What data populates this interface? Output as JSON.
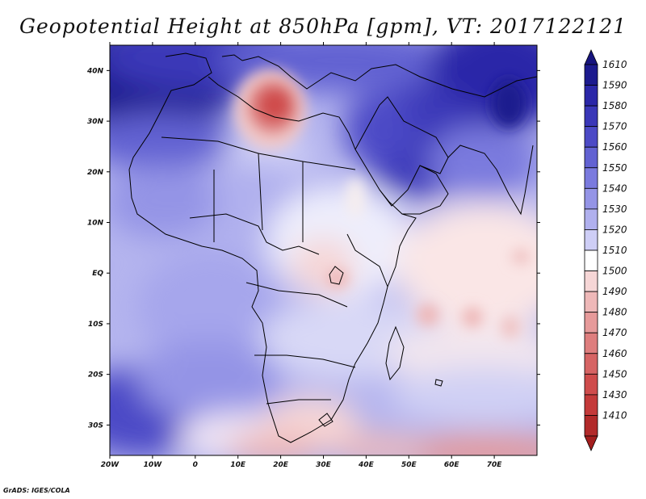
{
  "title": "Geopotential Height at 850hPa [gpm], VT: 2017122121",
  "footer": "GrADS: IGES/COLA",
  "map": {
    "projection": "latlon",
    "lon_range": [
      -20,
      80
    ],
    "lat_range": [
      -36,
      45
    ],
    "x_ticks": [
      {
        "value": -20,
        "label": "20W"
      },
      {
        "value": -10,
        "label": "10W"
      },
      {
        "value": 0,
        "label": "0"
      },
      {
        "value": 10,
        "label": "10E"
      },
      {
        "value": 20,
        "label": "20E"
      },
      {
        "value": 30,
        "label": "30E"
      },
      {
        "value": 40,
        "label": "40E"
      },
      {
        "value": 50,
        "label": "50E"
      },
      {
        "value": 60,
        "label": "60E"
      },
      {
        "value": 70,
        "label": "70E"
      }
    ],
    "y_ticks": [
      {
        "value": 40,
        "label": "40N"
      },
      {
        "value": 30,
        "label": "30N"
      },
      {
        "value": 20,
        "label": "20N"
      },
      {
        "value": 10,
        "label": "10N"
      },
      {
        "value": 0,
        "label": "EQ"
      },
      {
        "value": -10,
        "label": "10S"
      },
      {
        "value": -20,
        "label": "20S"
      },
      {
        "value": -30,
        "label": "30S"
      }
    ]
  },
  "colorbar": {
    "levels": [
      {
        "label": "1610",
        "color": "#1c1a8e"
      },
      {
        "label": "1590",
        "color": "#2b27a8"
      },
      {
        "label": "1580",
        "color": "#3a37b8"
      },
      {
        "label": "1570",
        "color": "#4c4ac6"
      },
      {
        "label": "1560",
        "color": "#6262d2"
      },
      {
        "label": "1550",
        "color": "#7a7ade"
      },
      {
        "label": "1540",
        "color": "#9494e6"
      },
      {
        "label": "1530",
        "color": "#b0b0ee"
      },
      {
        "label": "1520",
        "color": "#ceceF6"
      },
      {
        "label": "1510",
        "color": "#ffffff"
      },
      {
        "label": "1500",
        "color": "#f6d6d6"
      },
      {
        "label": "1490",
        "color": "#eeb8b8"
      },
      {
        "label": "1480",
        "color": "#e69a9a"
      },
      {
        "label": "1470",
        "color": "#de7e7e"
      },
      {
        "label": "1460",
        "color": "#d66464"
      },
      {
        "label": "1450",
        "color": "#cf4c4c"
      },
      {
        "label": "1430",
        "color": "#c43a3a"
      },
      {
        "label": "1410",
        "color": "#b22a2a"
      }
    ],
    "top_arrow_color": "#17147e",
    "bottom_arrow_color": "#a31e1e"
  },
  "chart_data": {
    "type": "heatmap",
    "title": "Geopotential Height at 850hPa [gpm], VT: 2017122121",
    "variable": "Geopotential Height at 850hPa",
    "units": "gpm",
    "valid_time": "2017122121",
    "xlim": [
      -20,
      80
    ],
    "ylim": [
      -36,
      45
    ],
    "contour_levels": [
      1410,
      1430,
      1450,
      1460,
      1470,
      1480,
      1490,
      1500,
      1510,
      1520,
      1530,
      1540,
      1550,
      1560,
      1570,
      1580,
      1590,
      1610
    ],
    "features": [
      {
        "lon": -18,
        "lat": 38,
        "value": 1600
      },
      {
        "lon": 0,
        "lat": 43,
        "value": 1585
      },
      {
        "lon": 28,
        "lat": 42,
        "value": 1565
      },
      {
        "lon": 45,
        "lat": 25,
        "value": 1585
      },
      {
        "lon": 72,
        "lat": 42,
        "value": 1600
      },
      {
        "lon": 17,
        "lat": 33,
        "value": 1465
      },
      {
        "lon": 15,
        "lat": 26,
        "value": 1515
      },
      {
        "lon": 10,
        "lat": 15,
        "value": 1530
      },
      {
        "lon": -10,
        "lat": 10,
        "value": 1545
      },
      {
        "lon": 30,
        "lat": 5,
        "value": 1510
      },
      {
        "lon": 32,
        "lat": -2,
        "value": 1500
      },
      {
        "lon": 28,
        "lat": -5,
        "value": 1510
      },
      {
        "lon": 20,
        "lat": -10,
        "value": 1535
      },
      {
        "lon": 10,
        "lat": -15,
        "value": 1530
      },
      {
        "lon": 25,
        "lat": -20,
        "value": 1525
      },
      {
        "lon": 40,
        "lat": -15,
        "value": 1520
      },
      {
        "lon": 55,
        "lat": -9,
        "value": 1490
      },
      {
        "lon": 63,
        "lat": -9,
        "value": 1490
      },
      {
        "lon": 68,
        "lat": -10,
        "value": 1492
      },
      {
        "lon": 68,
        "lat": 0,
        "value": 1498
      },
      {
        "lon": 60,
        "lat": -20,
        "value": 1510
      },
      {
        "lon": 60,
        "lat": -30,
        "value": 1525
      },
      {
        "lon": -15,
        "lat": -28,
        "value": 1570
      },
      {
        "lon": 0,
        "lat": -25,
        "value": 1540
      },
      {
        "lon": 25,
        "lat": -32,
        "value": 1492
      },
      {
        "lon": 15,
        "lat": -35,
        "value": 1490
      },
      {
        "lon": 65,
        "lat": -36,
        "value": 1470
      },
      {
        "lon": 45,
        "lat": -34,
        "value": 1500
      }
    ],
    "grid": false
  }
}
